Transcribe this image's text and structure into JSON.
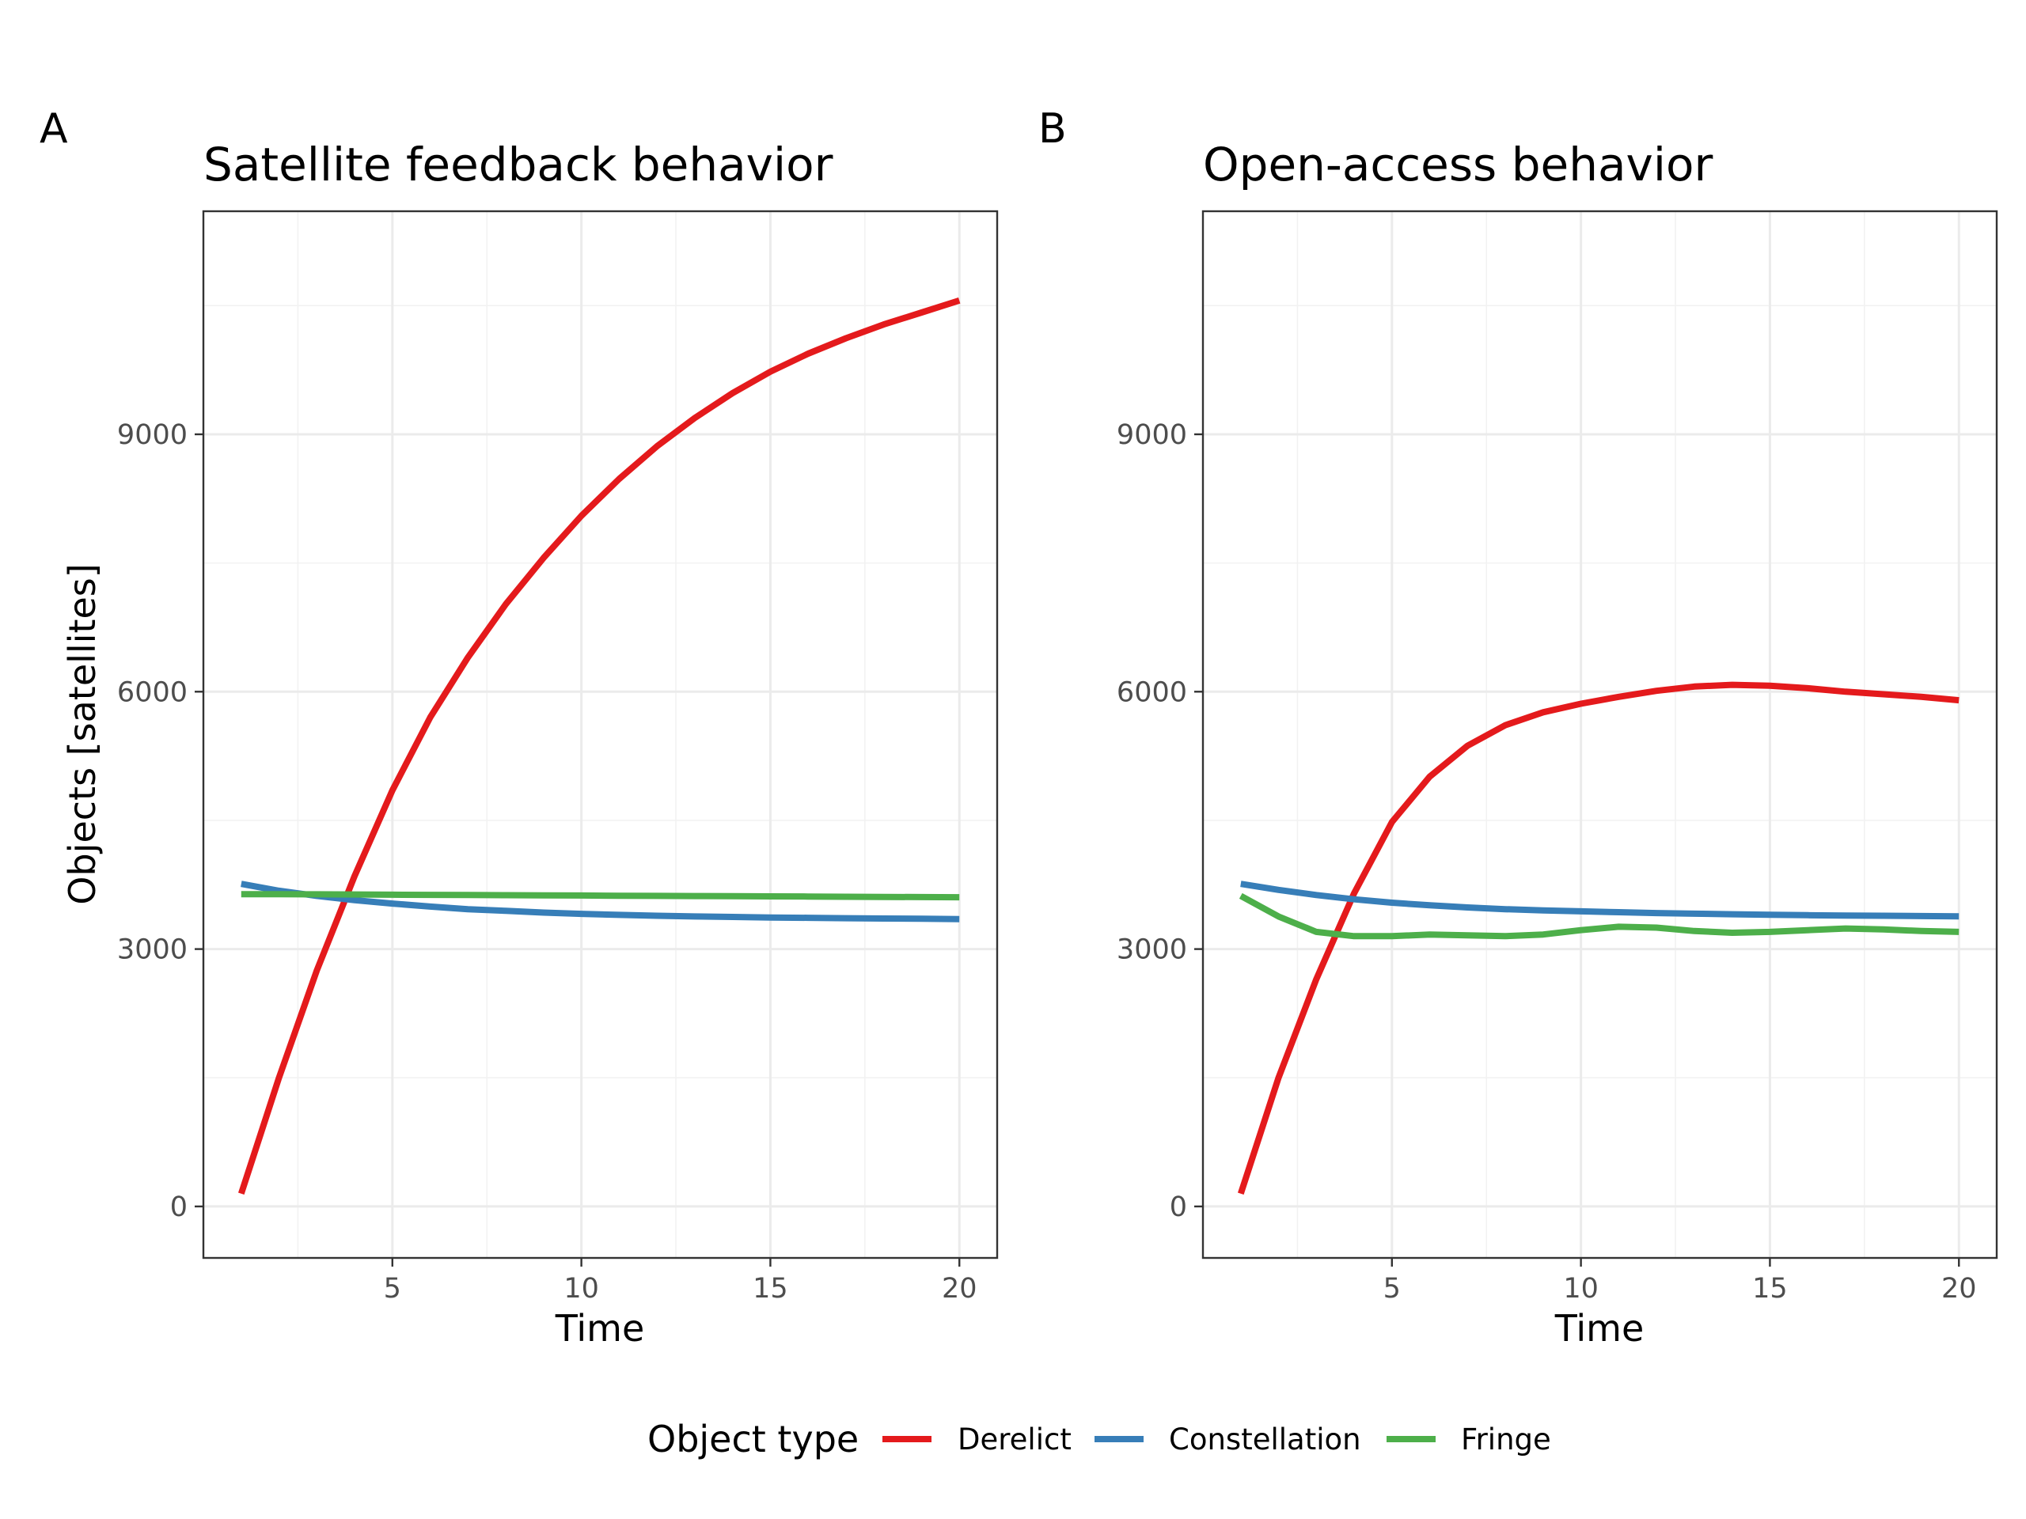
{
  "chart_data": [
    {
      "type": "line",
      "panel_tag": "A",
      "title": "Satellite feedback behavior",
      "xlabel": "Time",
      "ylabel": "Objects [satellites]",
      "xlim": [
        0,
        21
      ],
      "ylim": [
        -600,
        11600
      ],
      "x_ticks": [
        5,
        10,
        15,
        20
      ],
      "y_ticks": [
        0,
        3000,
        6000,
        9000
      ],
      "x_tick_labels": [
        "5",
        "10",
        "15",
        "20"
      ],
      "y_tick_labels": [
        "0",
        "3000",
        "6000",
        "9000"
      ],
      "grid": true,
      "x": [
        1,
        2,
        3,
        4,
        5,
        6,
        7,
        8,
        9,
        10,
        11,
        12,
        13,
        14,
        15,
        16,
        17,
        18,
        19,
        20
      ],
      "series": [
        {
          "name": "Derelict",
          "color": "#e41a1c",
          "values": [
            150,
            1500,
            2750,
            3850,
            4850,
            5700,
            6400,
            7020,
            7560,
            8050,
            8480,
            8860,
            9190,
            9480,
            9730,
            9940,
            10120,
            10280,
            10420,
            10560
          ]
        },
        {
          "name": "Constellation",
          "color": "#377eb8",
          "values": [
            3760,
            3680,
            3620,
            3570,
            3530,
            3495,
            3465,
            3445,
            3425,
            3410,
            3398,
            3388,
            3380,
            3374,
            3368,
            3364,
            3360,
            3356,
            3353,
            3350
          ]
        },
        {
          "name": "Fringe",
          "color": "#4daf4a",
          "values": [
            3640,
            3640,
            3638,
            3636,
            3634,
            3632,
            3630,
            3628,
            3626,
            3624,
            3622,
            3620,
            3618,
            3616,
            3614,
            3612,
            3610,
            3608,
            3606,
            3604
          ]
        }
      ]
    },
    {
      "type": "line",
      "panel_tag": "B",
      "title": "Open-access behavior",
      "xlabel": "Time",
      "ylabel": "",
      "xlim": [
        0,
        21
      ],
      "ylim": [
        -600,
        11600
      ],
      "x_ticks": [
        5,
        10,
        15,
        20
      ],
      "y_ticks": [
        0,
        3000,
        6000,
        9000
      ],
      "x_tick_labels": [
        "5",
        "10",
        "15",
        "20"
      ],
      "y_tick_labels": [
        "0",
        "3000",
        "6000",
        "9000"
      ],
      "grid": true,
      "x": [
        1,
        2,
        3,
        4,
        5,
        6,
        7,
        8,
        9,
        10,
        11,
        12,
        13,
        14,
        15,
        16,
        17,
        18,
        19,
        20
      ],
      "series": [
        {
          "name": "Derelict",
          "color": "#e41a1c",
          "values": [
            150,
            1500,
            2650,
            3650,
            4480,
            5010,
            5370,
            5610,
            5760,
            5860,
            5940,
            6010,
            6060,
            6080,
            6070,
            6040,
            6000,
            5970,
            5940,
            5900
          ]
        },
        {
          "name": "Constellation",
          "color": "#377eb8",
          "values": [
            3760,
            3690,
            3630,
            3580,
            3540,
            3510,
            3485,
            3465,
            3450,
            3440,
            3430,
            3420,
            3412,
            3406,
            3400,
            3395,
            3391,
            3388,
            3385,
            3382
          ]
        },
        {
          "name": "Fringe",
          "color": "#4daf4a",
          "values": [
            3620,
            3380,
            3200,
            3150,
            3150,
            3170,
            3160,
            3150,
            3170,
            3220,
            3260,
            3250,
            3210,
            3190,
            3200,
            3220,
            3240,
            3230,
            3210,
            3200
          ]
        }
      ]
    }
  ],
  "legend": {
    "title": "Object type",
    "position": "bottom",
    "entries": [
      {
        "label": "Derelict",
        "color": "#e41a1c"
      },
      {
        "label": "Constellation",
        "color": "#377eb8"
      },
      {
        "label": "Fringe",
        "color": "#4daf4a"
      }
    ]
  }
}
